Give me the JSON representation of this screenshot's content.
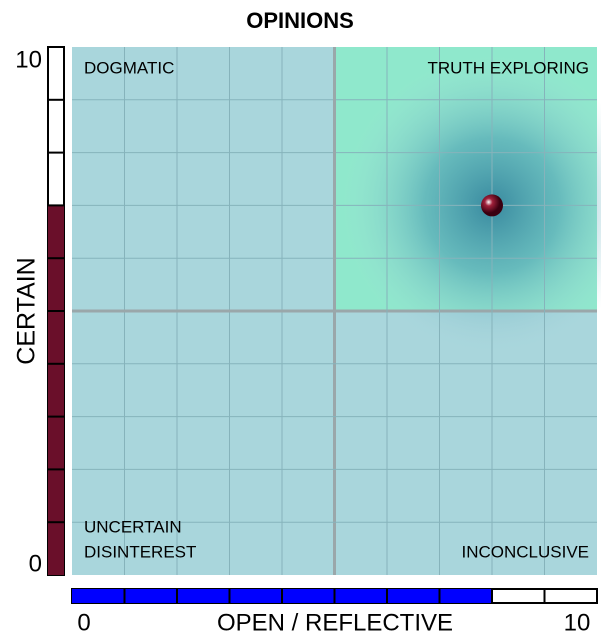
{
  "chart_data": {
    "type": "scatter",
    "title": "OPINIONS",
    "xlabel": "OPEN / REFLECTIVE",
    "ylabel": "CERTAIN",
    "series": [
      {
        "x": [
          8
        ],
        "values": [
          7
        ],
        "color": "#6a0f2a"
      }
    ],
    "xlim": [
      0,
      10
    ],
    "ylim": [
      0,
      10
    ],
    "xticks": [
      0,
      10
    ],
    "yticks": [
      0,
      10
    ],
    "x_meter_color": "#0000ff",
    "y_meter_color": "#6a0f2a",
    "plot_color": "#a9d6dc",
    "highlight_color": "#8fe8cc",
    "annotations": [
      "DOGMATIC",
      "TRUTH EXPLORING",
      "UNCERTAIN",
      "DISINTEREST",
      "INCONCLUSIVE"
    ]
  }
}
